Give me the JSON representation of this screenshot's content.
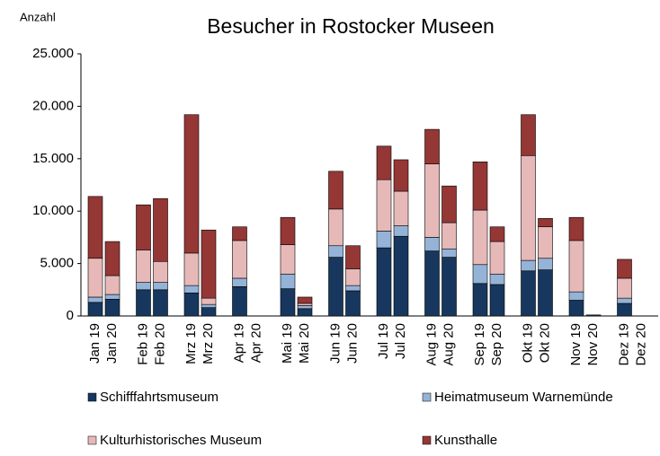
{
  "chart_data": {
    "type": "stacked_bar",
    "title": "Besucher in Rostocker Museen",
    "y_label": "Anzahl",
    "categories": [
      "Jan 19",
      "Jan 20",
      "Feb 19",
      "Feb 20",
      "Mrz 19",
      "Mrz 20",
      "Apr 19",
      "Apr 20",
      "Mai 19",
      "Mai 20",
      "Jun 19",
      "Jun 20",
      "Jul 19",
      "Jul 20",
      "Aug 19",
      "Aug 20",
      "Sep 19",
      "Sep 20",
      "Okt 19",
      "Okt 20",
      "Nov 19",
      "Nov 20",
      "Dez 19",
      "Dez 20"
    ],
    "series": [
      {
        "name": "Schifffahrtsmuseum",
        "color": "#17375e",
        "values": [
          1300,
          1600,
          2500,
          2500,
          2200,
          800,
          2800,
          0,
          2600,
          700,
          5600,
          2400,
          6500,
          7600,
          6200,
          5600,
          3100,
          3000,
          4300,
          4400,
          1500,
          100,
          1200,
          0
        ]
      },
      {
        "name": "Heimatmuseum Warnemünde",
        "color": "#95b3d7",
        "values": [
          500,
          450,
          700,
          700,
          700,
          300,
          800,
          0,
          1400,
          300,
          1100,
          500,
          1600,
          1000,
          1300,
          800,
          1800,
          1000,
          1000,
          1100,
          800,
          0,
          500,
          0
        ]
      },
      {
        "name": "Kulturhistorisches Museum",
        "color": "#e6b9b8",
        "values": [
          3700,
          1800,
          3100,
          2000,
          3100,
          600,
          3600,
          0,
          2800,
          200,
          3500,
          1600,
          4900,
          3300,
          7000,
          2500,
          5200,
          3100,
          10000,
          3000,
          4900,
          0,
          1900,
          0
        ]
      },
      {
        "name": "Kunsthalle",
        "color": "#953735",
        "values": [
          5900,
          3250,
          4300,
          6000,
          13200,
          6500,
          1300,
          0,
          2600,
          600,
          3600,
          2200,
          3200,
          3000,
          3300,
          3500,
          4600,
          1400,
          3900,
          800,
          2200,
          0,
          1800,
          0
        ]
      }
    ],
    "ylim": [
      0,
      25000
    ],
    "yticks": [
      0,
      {
        "value": 5000,
        "label": "5.000"
      },
      {
        "value": 10000,
        "label": "10.000"
      },
      {
        "value": 15000,
        "label": "15.000"
      },
      {
        "value": 20000,
        "label": "20.000"
      },
      {
        "value": 25000,
        "label": "25.000"
      }
    ]
  }
}
